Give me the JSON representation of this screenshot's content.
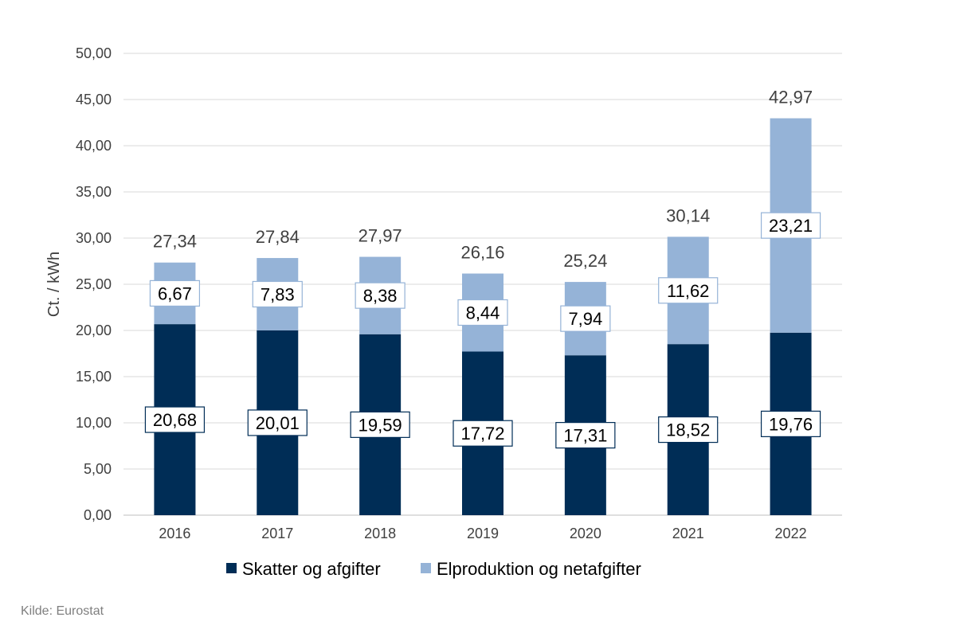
{
  "chart_data": {
    "type": "bar",
    "stacked": true,
    "categories": [
      "2016",
      "2017",
      "2018",
      "2019",
      "2020",
      "2021",
      "2022"
    ],
    "series": [
      {
        "name": "Skatter og afgifter",
        "color": "#002d56",
        "values": [
          20.68,
          20.01,
          19.59,
          17.72,
          17.31,
          18.52,
          19.76
        ],
        "labels": [
          "20,68",
          "20,01",
          "19,59",
          "17,72",
          "17,31",
          "18,52",
          "19,76"
        ]
      },
      {
        "name": "Elproduktion og netafgifter",
        "color": "#95b3d7",
        "values": [
          6.67,
          7.83,
          8.38,
          8.44,
          7.94,
          11.62,
          23.21
        ],
        "labels": [
          "6,67",
          "7,83",
          "8,38",
          "8,44",
          "7,94",
          "11,62",
          "23,21"
        ]
      }
    ],
    "totals": [
      27.34,
      27.84,
      27.97,
      26.16,
      25.24,
      30.14,
      42.97
    ],
    "total_labels": [
      "27,34",
      "27,84",
      "27,97",
      "26,16",
      "25,24",
      "30,14",
      "42,97"
    ],
    "ylabel": "Ct. / kWh",
    "ylim": [
      0,
      50
    ],
    "yticks": [
      0,
      5,
      10,
      15,
      20,
      25,
      30,
      35,
      40,
      45,
      50
    ],
    "ytick_labels": [
      "0,00",
      "5,00",
      "10,00",
      "15,00",
      "20,00",
      "25,00",
      "30,00",
      "35,00",
      "40,00",
      "45,00",
      "50,00"
    ],
    "grid": true,
    "legend_position": "bottom"
  },
  "source": "Kilde: Eurostat"
}
